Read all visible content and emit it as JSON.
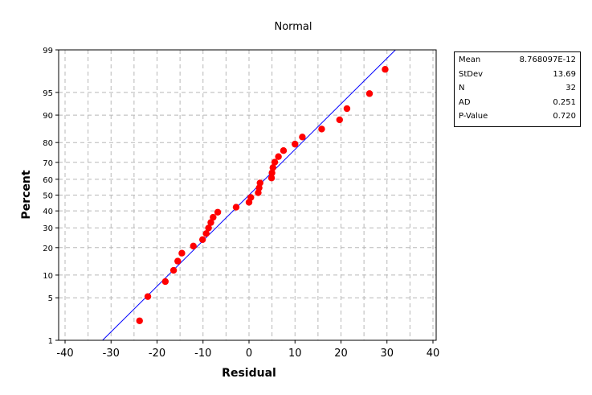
{
  "chart_data": {
    "type": "scatter",
    "subtype": "normal-probability-plot",
    "title": "Normal",
    "xlabel": "Residual",
    "ylabel": "Percent",
    "xlim": [
      -42,
      42
    ],
    "x_ticks": [
      -40,
      -30,
      -20,
      -10,
      0,
      10,
      20,
      30,
      40
    ],
    "x_grid": [
      -40,
      -35,
      -30,
      -25,
      -20,
      -15,
      -10,
      -5,
      0,
      5,
      10,
      15,
      20,
      25,
      30,
      35,
      40
    ],
    "ylim": [
      1,
      99
    ],
    "y_ticks": [
      1,
      5,
      10,
      20,
      30,
      40,
      50,
      60,
      70,
      80,
      90,
      95,
      99
    ],
    "grid": true,
    "point_color": "#ff0000",
    "line_color": "#0000ff",
    "points": {
      "residual": [
        -23.8,
        -22.0,
        -18.2,
        -16.4,
        -15.5,
        -14.6,
        -12.1,
        -10.1,
        -9.3,
        -8.8,
        -8.3,
        -7.8,
        -6.8,
        -2.8,
        0.0,
        0.4,
        2.0,
        2.2,
        2.4,
        4.9,
        5.0,
        5.2,
        5.6,
        6.4,
        7.5,
        10.0,
        11.6,
        15.8,
        19.7,
        21.3,
        26.2,
        29.6
      ],
      "percent": [
        2.2,
        5.2,
        8.3,
        11.4,
        14.5,
        17.6,
        20.7,
        23.8,
        26.9,
        29.9,
        33.0,
        36.1,
        39.2,
        42.3,
        45.4,
        48.5,
        51.5,
        54.6,
        57.7,
        60.8,
        63.9,
        67.0,
        70.1,
        73.1,
        76.2,
        79.3,
        82.4,
        85.5,
        88.6,
        91.7,
        94.8,
        97.8
      ]
    },
    "fit_line": {
      "mean": 0,
      "stdev": 13.69
    }
  },
  "stats": [
    {
      "label": "Mean",
      "value": "8.768097E-12"
    },
    {
      "label": "StDev",
      "value": "13.69"
    },
    {
      "label": "N",
      "value": "32"
    },
    {
      "label": "AD",
      "value": "0.251"
    },
    {
      "label": "P-Value",
      "value": "0.720"
    }
  ]
}
